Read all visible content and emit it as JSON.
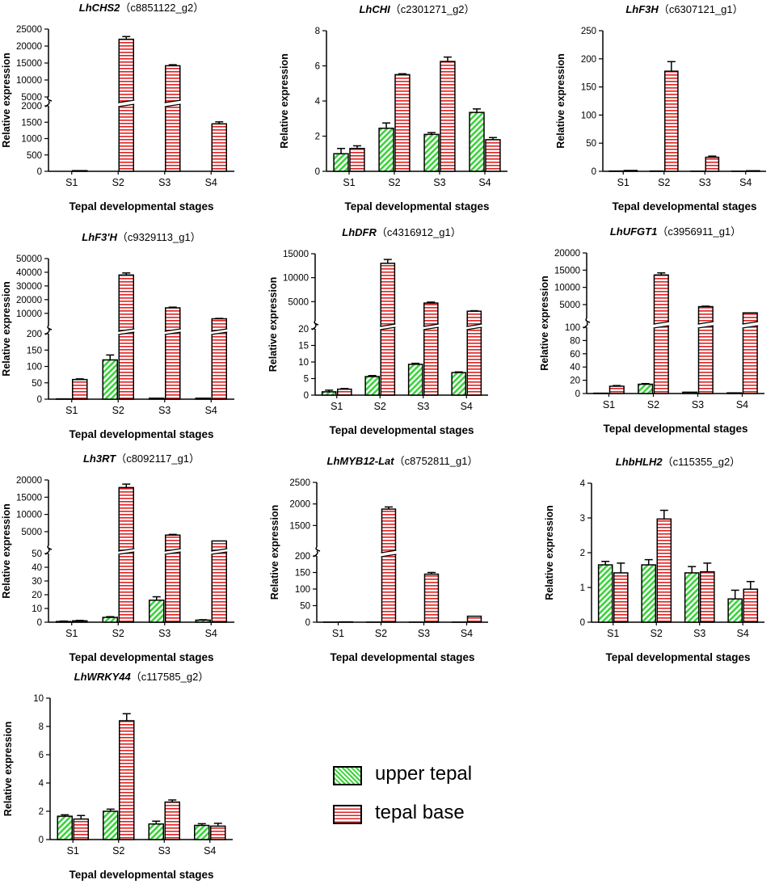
{
  "legend": {
    "upper_label": "upper tepal",
    "base_label": "tepal base"
  },
  "colors": {
    "upper_fill": "#3ad23a",
    "base_fill": "#e02020",
    "background": "#ffffff",
    "ink": "#000000"
  },
  "chart_data": [
    {
      "type": "bar",
      "gene": "LhCHS2",
      "id": "（c8851122_g2）",
      "categories": [
        "S1",
        "S2",
        "S3",
        "S4"
      ],
      "xlabel": "Tepal developmental stages",
      "ylabel": "Relative expression",
      "series": [
        {
          "name": "upper tepal",
          "values": [
            0,
            0,
            0,
            0
          ],
          "errors": [
            0,
            0,
            0,
            0
          ]
        },
        {
          "name": "tepal base",
          "values": [
            20,
            22000,
            14200,
            1450
          ],
          "errors": [
            10,
            800,
            300,
            60
          ]
        }
      ],
      "lower_axis": {
        "range": [
          0,
          2000
        ],
        "ticks": [
          "0",
          "500",
          "1000",
          "1500",
          "2000"
        ]
      },
      "upper_axis": {
        "range": [
          5000,
          25000
        ],
        "ticks": [
          "5000",
          "10000",
          "15000",
          "20000",
          "25000"
        ]
      }
    },
    {
      "type": "bar",
      "gene": "LhCHI",
      "id": "（c2301271_g2）",
      "categories": [
        "S1",
        "S2",
        "S3",
        "S4"
      ],
      "xlabel": "Tepal developmental stages",
      "ylabel": "Relative expression",
      "series": [
        {
          "name": "upper tepal",
          "values": [
            1.0,
            2.45,
            2.1,
            3.35
          ],
          "errors": [
            0.3,
            0.3,
            0.1,
            0.2
          ]
        },
        {
          "name": "tepal base",
          "values": [
            1.3,
            5.5,
            6.25,
            1.8
          ],
          "errors": [
            0.15,
            0.05,
            0.25,
            0.12
          ]
        }
      ],
      "axis": {
        "range": [
          0,
          8
        ],
        "ticks": [
          "0",
          "2",
          "4",
          "6",
          "8"
        ]
      }
    },
    {
      "type": "bar",
      "gene": "LhF3H",
      "id": "（c6307121_g1）",
      "categories": [
        "S1",
        "S2",
        "S3",
        "S4"
      ],
      "xlabel": "Tepal developmental stages",
      "ylabel": "Relative expression",
      "series": [
        {
          "name": "upper tepal",
          "values": [
            0.5,
            0.5,
            0.2,
            0.2
          ],
          "errors": [
            0.2,
            0.2,
            0.1,
            0.1
          ]
        },
        {
          "name": "tepal base",
          "values": [
            1.5,
            178,
            25,
            1
          ],
          "errors": [
            0.5,
            17,
            2,
            0.3
          ]
        }
      ],
      "axis": {
        "range": [
          0,
          250
        ],
        "ticks": [
          "0",
          "50",
          "100",
          "150",
          "200",
          "250"
        ]
      }
    },
    {
      "type": "bar",
      "gene": "LhF3'H",
      "id": "（c9329113_g1）",
      "categories": [
        "S1",
        "S2",
        "S3",
        "S4"
      ],
      "xlabel": "Tepal developmental stages",
      "ylabel": "Relative expression",
      "series": [
        {
          "name": "upper tepal",
          "values": [
            1,
            120,
            3,
            3
          ],
          "errors": [
            0.5,
            15,
            1,
            1
          ]
        },
        {
          "name": "tepal base",
          "values": [
            60,
            38000,
            14000,
            6000
          ],
          "errors": [
            2,
            1500,
            500,
            300
          ]
        }
      ],
      "lower_axis": {
        "range": [
          0,
          200
        ],
        "ticks": [
          "0",
          "50",
          "100",
          "150",
          "200"
        ]
      },
      "upper_axis": {
        "range": [
          1000,
          50000
        ],
        "ticks": [
          "10000",
          "20000",
          "30000",
          "40000",
          "50000"
        ]
      }
    },
    {
      "type": "bar",
      "gene": "LhDFR",
      "id": "（c4316912_g1）",
      "categories": [
        "S1",
        "S2",
        "S3",
        "S4"
      ],
      "xlabel": "Tepal developmental stages",
      "ylabel": "Relative expression",
      "series": [
        {
          "name": "upper tepal",
          "values": [
            1.0,
            5.6,
            9.3,
            6.8
          ],
          "errors": [
            0.5,
            0.3,
            0.3,
            0.2
          ]
        },
        {
          "name": "tepal base",
          "values": [
            1.8,
            13000,
            4700,
            3000
          ],
          "errors": [
            0.2,
            800,
            200,
            100
          ]
        }
      ],
      "lower_axis": {
        "range": [
          0,
          20
        ],
        "ticks": [
          "0",
          "5",
          "10",
          "15",
          "20"
        ]
      },
      "upper_axis": {
        "range": [
          1000,
          15000
        ],
        "ticks": [
          "5000",
          "10000",
          "15000"
        ]
      }
    },
    {
      "type": "bar",
      "gene": "LhUFGT1",
      "id": "（c3956911_g1）",
      "categories": [
        "S1",
        "S2",
        "S3",
        "S4"
      ],
      "xlabel": "Tepal developmental stages",
      "ylabel": "Relative expression",
      "series": [
        {
          "name": "upper tepal",
          "values": [
            0.5,
            14,
            2,
            1
          ],
          "errors": [
            0.3,
            1,
            0.5,
            0.3
          ]
        },
        {
          "name": "tepal base",
          "values": [
            11,
            13600,
            4400,
            2600
          ],
          "errors": [
            1,
            600,
            150,
            100
          ]
        }
      ],
      "lower_axis": {
        "range": [
          0,
          100
        ],
        "ticks": [
          "0",
          "20",
          "40",
          "60",
          "80",
          "100"
        ]
      },
      "upper_axis": {
        "range": [
          1000,
          20000
        ],
        "ticks": [
          "5000",
          "10000",
          "15000",
          "20000"
        ]
      }
    },
    {
      "type": "bar",
      "gene": "Lh3RT",
      "id": "（c8092117_g1）",
      "categories": [
        "S1",
        "S2",
        "S3",
        "S4"
      ],
      "xlabel": "Tepal developmental stages",
      "ylabel": "Relative expression",
      "series": [
        {
          "name": "upper tepal",
          "values": [
            0.5,
            3.5,
            16,
            1.5
          ],
          "errors": [
            0.3,
            0.5,
            2.5,
            0.3
          ]
        },
        {
          "name": "tepal base",
          "values": [
            1,
            17800,
            4000,
            2300
          ],
          "errors": [
            0.3,
            1000,
            200,
            100
          ]
        }
      ],
      "lower_axis": {
        "range": [
          0,
          50
        ],
        "ticks": [
          "0",
          "10",
          "20",
          "30",
          "40",
          "50"
        ]
      },
      "upper_axis": {
        "range": [
          1000,
          20000
        ],
        "ticks": [
          "5000",
          "10000",
          "15000",
          "20000"
        ]
      }
    },
    {
      "type": "bar",
      "gene": "LhMYB12-Lat",
      "id": "（c8752811_g1）",
      "categories": [
        "S1",
        "S2",
        "S3",
        "S4"
      ],
      "xlabel": "Tepal developmental stages",
      "ylabel": "Relative expression",
      "series": [
        {
          "name": "upper tepal",
          "values": [
            0.3,
            0.3,
            0.3,
            0.3
          ],
          "errors": [
            0.1,
            0.1,
            0.1,
            0.1
          ]
        },
        {
          "name": "tepal base",
          "values": [
            1,
            1880,
            145,
            18
          ],
          "errors": [
            0.3,
            50,
            5,
            1
          ]
        }
      ],
      "lower_axis": {
        "range": [
          0,
          200
        ],
        "ticks": [
          "0",
          "50",
          "100",
          "150",
          "200"
        ]
      },
      "upper_axis": {
        "range": [
          1000,
          2500
        ],
        "ticks": [
          "1500",
          "2000",
          "2500"
        ]
      }
    },
    {
      "type": "bar",
      "gene": "LhbHLH2",
      "id": "（c115355_g2）",
      "categories": [
        "S1",
        "S2",
        "S3",
        "S4"
      ],
      "xlabel": "Tepal developmental stages",
      "ylabel": "Relative expression",
      "series": [
        {
          "name": "upper tepal",
          "values": [
            1.65,
            1.65,
            1.42,
            0.67
          ],
          "errors": [
            0.1,
            0.15,
            0.18,
            0.25
          ]
        },
        {
          "name": "tepal base",
          "values": [
            1.42,
            2.97,
            1.45,
            0.95
          ],
          "errors": [
            0.28,
            0.25,
            0.25,
            0.22
          ]
        }
      ],
      "axis": {
        "range": [
          0,
          4
        ],
        "ticks": [
          "0",
          "1",
          "2",
          "3",
          "4"
        ]
      }
    },
    {
      "type": "bar",
      "gene": "LhWRKY44",
      "id": "（c117585_g2）",
      "categories": [
        "S1",
        "S2",
        "S3",
        "S4"
      ],
      "xlabel": "Tepal developmental stages",
      "ylabel": "Relative expression",
      "series": [
        {
          "name": "upper tepal",
          "values": [
            1.65,
            2.0,
            1.1,
            1.0
          ],
          "errors": [
            0.1,
            0.15,
            0.2,
            0.12
          ]
        },
        {
          "name": "tepal base",
          "values": [
            1.45,
            8.4,
            2.65,
            0.95
          ],
          "errors": [
            0.25,
            0.5,
            0.15,
            0.2
          ]
        }
      ],
      "axis": {
        "range": [
          0,
          10
        ],
        "ticks": [
          "0",
          "2",
          "4",
          "6",
          "8",
          "10"
        ]
      }
    }
  ]
}
